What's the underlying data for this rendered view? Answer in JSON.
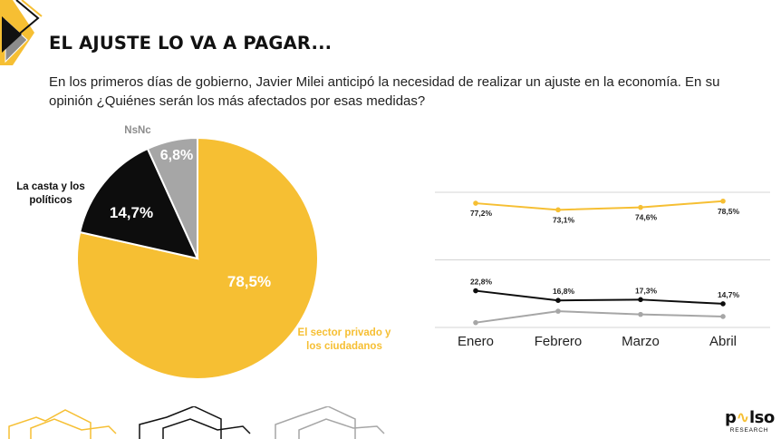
{
  "header": {
    "title": "EL AJUSTE LO VA A PAGAR...",
    "subtitle": "En los primeros días de gobierno, Javier Milei anticipó la necesidad de realizar un ajuste en la economía. En su opinión ¿Quiénes serán los más afectados por esas medidas?"
  },
  "brand": {
    "name_left": "p",
    "name_right": "lso",
    "subtitle": "RESEARCH"
  },
  "chart_data": [
    {
      "type": "pie",
      "slices": [
        {
          "label": "El sector privado y los ciudadanos",
          "value": 78.5,
          "value_label": "78,5%",
          "color": "#f6bf33",
          "label_color": "#f6bf33"
        },
        {
          "label": "La casta y los políticos",
          "value": 14.7,
          "value_label": "14,7%",
          "color": "#0d0d0d",
          "label_color": "#111111"
        },
        {
          "label": "NsNc",
          "value": 6.8,
          "value_label": "6,8%",
          "color": "#a6a6a6",
          "label_color": "#8c8c8c"
        }
      ]
    },
    {
      "type": "line",
      "categories": [
        "Enero",
        "Febrero",
        "Marzo",
        "Abril"
      ],
      "series": [
        {
          "values": [
            77.2,
            73.1,
            74.6,
            78.5
          ],
          "labels": [
            "77,2%",
            "73,1%",
            "74,6%",
            "78,5%"
          ],
          "color": "#f6bf33"
        },
        {
          "values": [
            22.8,
            16.8,
            17.3,
            14.7
          ],
          "labels": [
            "22,8%",
            "16,8%",
            "17,3%",
            "14,7%"
          ],
          "color": "#0d0d0d"
        },
        {
          "values": [
            3.0,
            10.1,
            8.1,
            6.8
          ],
          "labels": [],
          "color": "#a6a6a6"
        }
      ],
      "ylim": [
        0,
        84
      ],
      "grid": true
    }
  ]
}
